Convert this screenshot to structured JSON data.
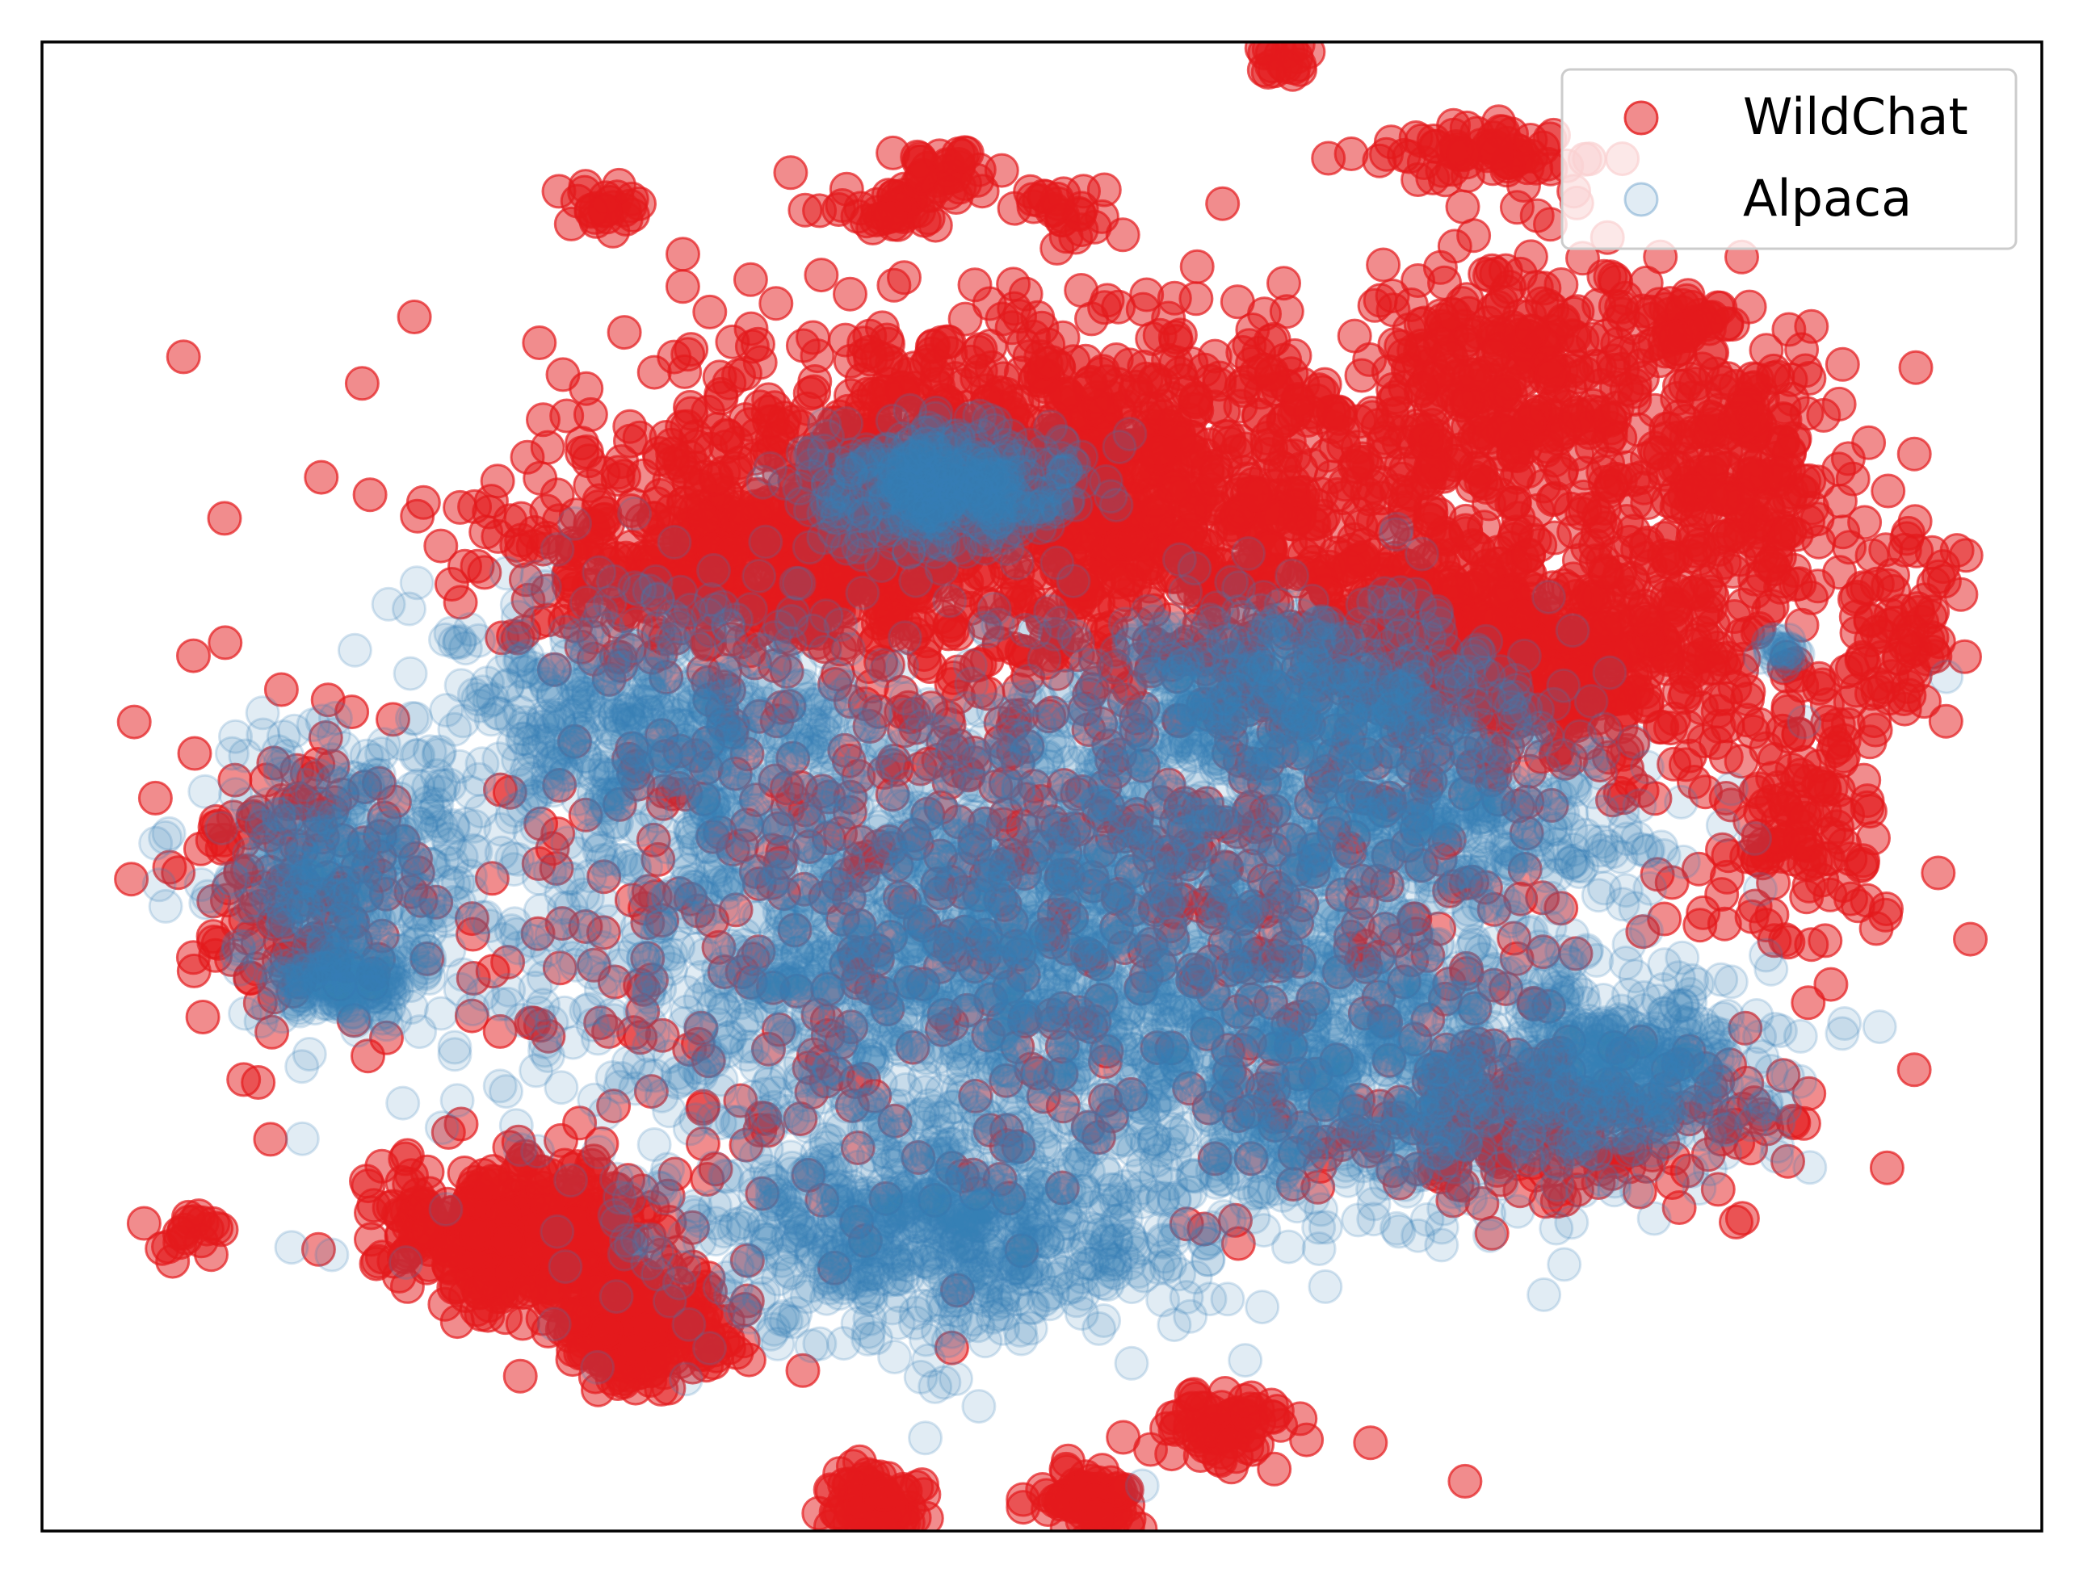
{
  "chart_data": {
    "type": "scatter",
    "title": "",
    "xlabel": "",
    "ylabel": "",
    "xlim": [
      -100,
      100
    ],
    "ylim": [
      -100,
      100
    ],
    "axes_ticks_visible": false,
    "grid": false,
    "legend_position": "top-right",
    "series": [
      {
        "name": "WildChat",
        "color": "#e41a1c",
        "alpha": 0.5,
        "clusters": [
          {
            "cx": 2,
            "cy": 40,
            "rx": 40,
            "ry": 22,
            "n": 1500
          },
          {
            "cx": 48,
            "cy": 18,
            "rx": 24,
            "ry": 14,
            "n": 700
          },
          {
            "cx": 48,
            "cy": 55,
            "rx": 14,
            "ry": 16,
            "n": 300
          },
          {
            "cx": 68,
            "cy": 42,
            "rx": 12,
            "ry": 14,
            "n": 250
          },
          {
            "cx": -30,
            "cy": 30,
            "rx": 22,
            "ry": 12,
            "n": 400
          },
          {
            "cx": -52,
            "cy": -60,
            "rx": 12,
            "ry": 9,
            "n": 450
          },
          {
            "cx": -40,
            "cy": -73,
            "rx": 8,
            "ry": 7,
            "n": 250
          },
          {
            "cx": -17,
            "cy": -96,
            "rx": 4,
            "ry": 4,
            "n": 90
          },
          {
            "cx": 5,
            "cy": -96,
            "rx": 4,
            "ry": 4,
            "n": 90
          },
          {
            "cx": 18,
            "cy": -86,
            "rx": 6,
            "ry": 4,
            "n": 80
          },
          {
            "cx": 76,
            "cy": -5,
            "rx": 8,
            "ry": 16,
            "n": 120
          },
          {
            "cx": 85,
            "cy": 20,
            "rx": 6,
            "ry": 14,
            "n": 80
          },
          {
            "cx": -75,
            "cy": -12,
            "rx": 10,
            "ry": 18,
            "n": 150
          },
          {
            "cx": 0,
            "cy": -12,
            "rx": 55,
            "ry": 40,
            "n": 800
          },
          {
            "cx": 50,
            "cy": -45,
            "rx": 20,
            "ry": 10,
            "n": 250
          },
          {
            "cx": -15,
            "cy": 78,
            "rx": 6,
            "ry": 3,
            "n": 45
          },
          {
            "cx": -10,
            "cy": 83,
            "rx": 4,
            "ry": 3,
            "n": 30
          },
          {
            "cx": 45,
            "cy": 85,
            "rx": 10,
            "ry": 3,
            "n": 70
          },
          {
            "cx": 65,
            "cy": 62,
            "rx": 6,
            "ry": 4,
            "n": 50
          },
          {
            "cx": 24,
            "cy": 97,
            "rx": 3,
            "ry": 3,
            "n": 20
          },
          {
            "cx": -85,
            "cy": -60,
            "rx": 4,
            "ry": 4,
            "n": 20
          },
          {
            "cx": -44,
            "cy": 78,
            "rx": 4,
            "ry": 3,
            "n": 25
          },
          {
            "cx": 2,
            "cy": 78,
            "rx": 4,
            "ry": 3,
            "n": 25
          }
        ]
      },
      {
        "name": "Alpaca",
        "color": "#377eb8",
        "alpha": 0.15,
        "clusters": [
          {
            "cx": -5,
            "cy": -20,
            "rx": 45,
            "ry": 30,
            "n": 2200
          },
          {
            "cx": -10,
            "cy": 40,
            "rx": 12,
            "ry": 7,
            "n": 450
          },
          {
            "cx": 25,
            "cy": 12,
            "rx": 22,
            "ry": 12,
            "n": 600
          },
          {
            "cx": 35,
            "cy": -40,
            "rx": 28,
            "ry": 16,
            "n": 700
          },
          {
            "cx": -70,
            "cy": -10,
            "rx": 12,
            "ry": 16,
            "n": 350
          },
          {
            "cx": -70,
            "cy": -26,
            "rx": 7,
            "ry": 4,
            "n": 160
          },
          {
            "cx": -40,
            "cy": 10,
            "rx": 18,
            "ry": 16,
            "n": 450
          },
          {
            "cx": -10,
            "cy": -60,
            "rx": 25,
            "ry": 13,
            "n": 700
          },
          {
            "cx": 60,
            "cy": -38,
            "rx": 12,
            "ry": 10,
            "n": 300
          },
          {
            "cx": 74,
            "cy": 18,
            "rx": 2,
            "ry": 2,
            "n": 20
          },
          {
            "cx": 40,
            "cy": -5,
            "rx": 18,
            "ry": 10,
            "n": 300
          }
        ]
      }
    ]
  }
}
